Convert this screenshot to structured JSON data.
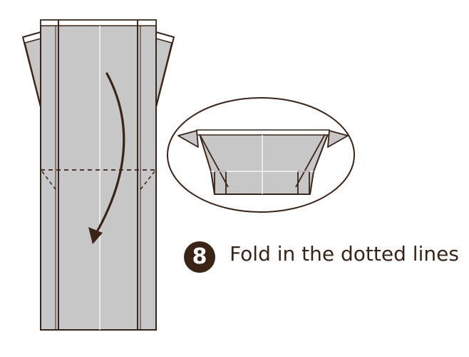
{
  "step": {
    "number": "8",
    "instruction": "Fold in the dotted lines"
  },
  "colors": {
    "paper_fill": "#c7c7c7",
    "outline": "#3a2416",
    "badge": "#3a2416",
    "text": "#3a2416"
  }
}
